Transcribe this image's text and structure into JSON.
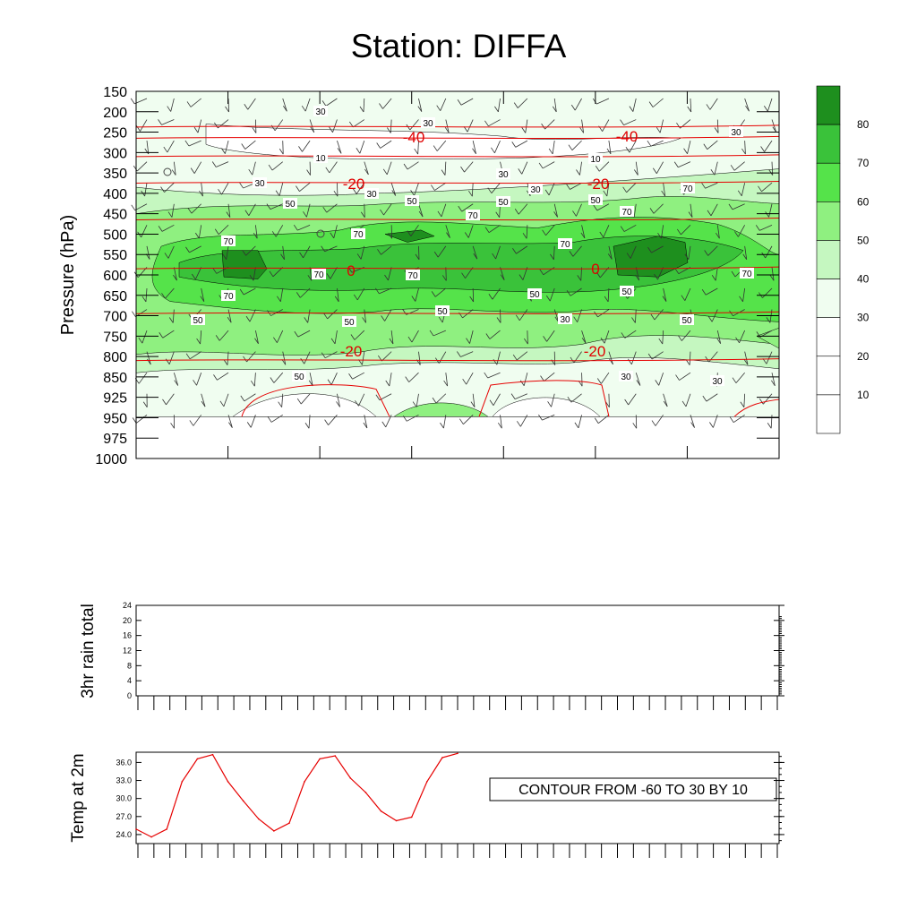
{
  "title": "Station: DIFFA",
  "colors": {
    "temp": "#e60000",
    "levels": [
      "#ffffff",
      "#ffffff",
      "#ffffff",
      "#f0fdf0",
      "#c5f7c0",
      "#8ff080",
      "#55e34a",
      "#3ac23a",
      "#1e8f1e"
    ],
    "wind": "#333333"
  },
  "chart_data": [
    {
      "type": "heatmap",
      "name": "upper-air",
      "ylabel": "Pressure (hPa)",
      "yticks": [
        "150",
        "200",
        "250",
        "300",
        "350",
        "400",
        "450",
        "500",
        "550",
        "600",
        "650",
        "700",
        "750",
        "800",
        "850",
        "925",
        "950",
        "975",
        "1000"
      ],
      "colorbar": {
        "labels": [
          "10",
          "20",
          "30",
          "40",
          "50",
          "60",
          "70",
          "80"
        ]
      },
      "temp_contour_labels": [
        "-40",
        "-40",
        "-20",
        "-20",
        "0",
        "0",
        "-20",
        "-20"
      ],
      "rh_contour_labels": [
        "30",
        "30",
        "30",
        "10",
        "10",
        "30",
        "30",
        "30",
        "30",
        "50",
        "50",
        "50",
        "50",
        "70",
        "70",
        "70",
        "70",
        "70",
        "70",
        "70",
        "70",
        "70",
        "70",
        "50",
        "50",
        "50",
        "50",
        "50",
        "30",
        "50",
        "50"
      ]
    },
    {
      "type": "bar",
      "name": "rain",
      "ylabel": "3hr rain total",
      "yticks": [
        "0",
        "4",
        "8",
        "12",
        "16",
        "20",
        "24"
      ],
      "ylim": [
        0,
        24
      ],
      "values": []
    },
    {
      "type": "line",
      "name": "temp2m",
      "ylabel": "Temp at 2m",
      "yticks": [
        "24.0",
        "27.0",
        "30.0",
        "33.0",
        "36.0"
      ],
      "ylim": [
        22.5,
        37.7
      ],
      "values": [
        24.9,
        23.6,
        24.9,
        32.8,
        36.6,
        37.3,
        32.8,
        29.6,
        26.6,
        24.6,
        25.9,
        32.8,
        36.6,
        37.1,
        33.4,
        31.0,
        27.9,
        26.3,
        26.9,
        32.8,
        36.8,
        37.5
      ]
    }
  ],
  "annotation": "CONTOUR FROM -60 TO 30 BY 10"
}
